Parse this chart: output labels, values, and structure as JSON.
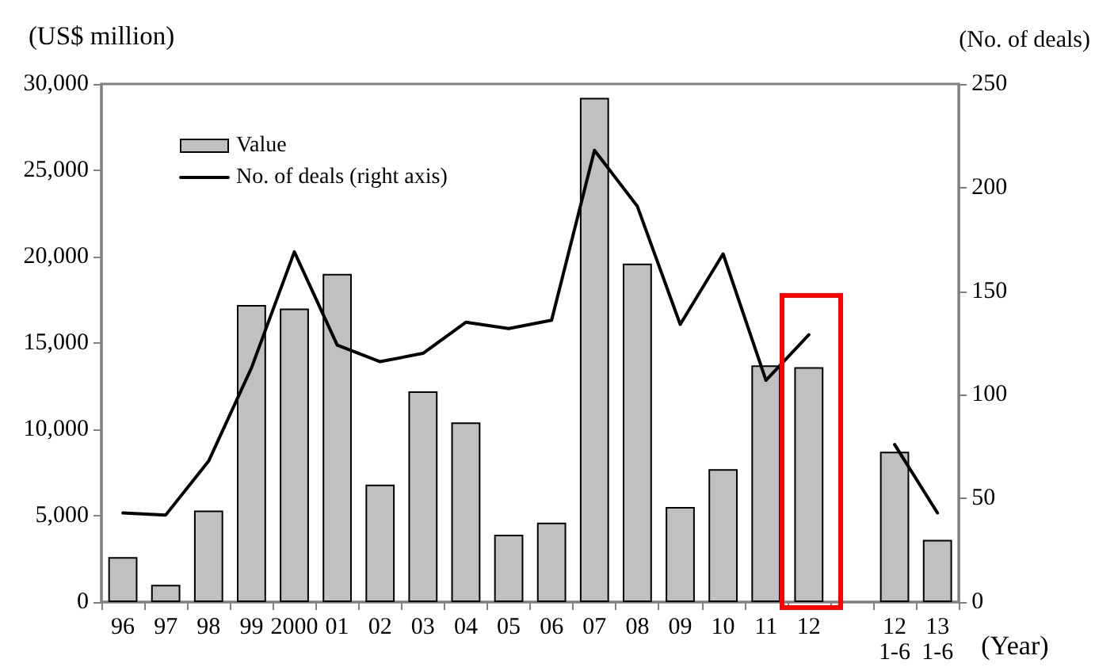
{
  "chart_data": {
    "type": "bar",
    "categories": [
      "96",
      "97",
      "98",
      "99",
      "2000",
      "01",
      "02",
      "03",
      "04",
      "05",
      "06",
      "07",
      "08",
      "09",
      "10",
      "11",
      "12",
      null,
      "12\n1-6",
      "13\n1-6"
    ],
    "xlabel": "(Year)",
    "ylabel": "(US$ million)",
    "y2label": "(No. of deals)",
    "series": [
      {
        "name": "Value",
        "color": "#c0c0c0",
        "values": [
          2600,
          1000,
          5300,
          17200,
          17000,
          19000,
          6800,
          12200,
          10400,
          3900,
          4600,
          29200,
          19600,
          5500,
          7700,
          13700,
          13600,
          null,
          8700,
          3600
        ]
      },
      {
        "name": "No. of deals (right axis)",
        "type": "line",
        "axis": "y2",
        "color": "#000000",
        "values": [
          43,
          42,
          68,
          113,
          169,
          124,
          116,
          120,
          135,
          132,
          136,
          218,
          191,
          134,
          168,
          107,
          129,
          null,
          76,
          43
        ]
      }
    ],
    "ylim": [
      0,
      30000
    ],
    "yticks": [
      0,
      {
        "value": 5000,
        "label": "5,000"
      },
      {
        "value": 10000,
        "label": "10,000"
      },
      {
        "value": 15000,
        "label": "15,000"
      },
      {
        "value": 20000,
        "label": "20,000"
      },
      {
        "value": 25000,
        "label": "25,000"
      },
      {
        "value": 30000,
        "label": "30,000"
      }
    ],
    "y2lim": [
      0,
      250
    ],
    "y2ticks": [
      0,
      50,
      100,
      150,
      200,
      250
    ],
    "grid": false,
    "legend": "top left",
    "marker": "none",
    "line_style": "solid"
  }
}
